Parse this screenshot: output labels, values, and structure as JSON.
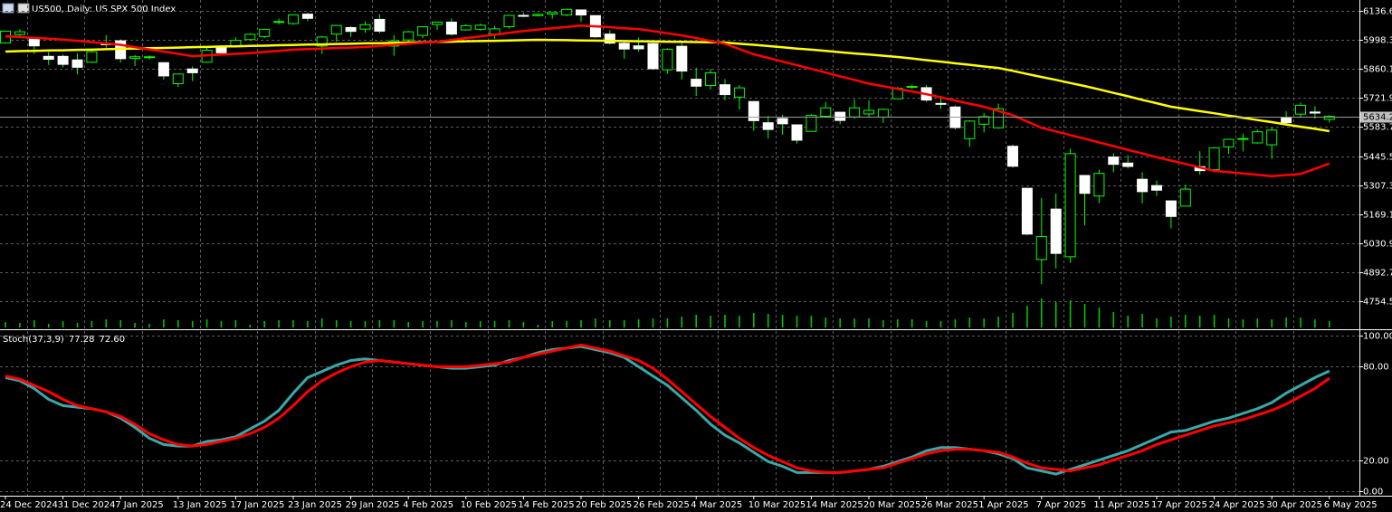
{
  "chart_data": [
    {
      "type": "candlestick",
      "title": "US500, Daily: US SPX 500 Index",
      "categories": [
        "24 Dec 2024",
        null,
        null,
        null,
        "31 Dec 2024",
        null,
        null,
        null,
        "7 Jan 2025",
        null,
        null,
        null,
        "13 Jan 2025",
        null,
        null,
        null,
        "17 Jan 2025",
        null,
        null,
        null,
        "23 Jan 2025",
        null,
        null,
        null,
        "29 Jan 2025",
        null,
        null,
        null,
        "4 Feb 2025",
        null,
        null,
        null,
        "10 Feb 2025",
        null,
        null,
        null,
        "14 Feb 2025",
        null,
        null,
        null,
        "20 Feb 2025",
        null,
        null,
        null,
        "26 Feb 2025",
        null,
        null,
        null,
        "4 Mar 2025",
        null,
        null,
        null,
        "10 Mar 2025",
        null,
        null,
        null,
        "14 Mar 2025",
        null,
        null,
        null,
        "20 Mar 2025",
        null,
        null,
        null,
        "26 Mar 2025",
        null,
        null,
        null,
        "1 Apr 2025",
        null,
        null,
        null,
        "7 Apr 2025",
        null,
        null,
        null,
        "11 Apr 2025",
        null,
        null,
        null,
        "17 Apr 2025",
        null,
        null,
        null,
        "24 Apr 2025",
        null,
        null,
        null,
        "30 Apr 2025",
        null,
        null,
        null,
        "6 May 2025"
      ],
      "open": [
        5984,
        6024,
        6006,
        5920,
        5920,
        5903,
        5892,
        5982,
        5994,
        5910,
        5915,
        5890,
        5790,
        5860,
        5892,
        5963,
        5970,
        6000,
        6015,
        6082,
        6076,
        6121,
        5969,
        6026,
        6057,
        6050,
        6096,
        5969,
        5998,
        6020,
        6072,
        6083,
        6046,
        6049,
        6026,
        6061,
        6115,
        6114,
        6121,
        6117,
        6141,
        6114,
        6026,
        5982,
        5970,
        5981,
        5856,
        5968,
        5811,
        5781,
        5785,
        5726,
        5705,
        5604,
        5624,
        5594,
        5563,
        5635,
        5654,
        5632,
        5646,
        5631,
        5718,
        5775,
        5771,
        5696,
        5679,
        5528,
        5597,
        5580,
        5492,
        5292,
        4953,
        5193,
        4966,
        5353,
        5255,
        5441,
        5412,
        5335,
        5305,
        5232,
        5207,
        5395,
        5381,
        5489,
        5529,
        5508,
        5499,
        5626,
        5645,
        5655,
        5620
      ],
      "high": [
        6040,
        6049,
        6007,
        5941,
        5929,
        5935,
        5949,
        6021,
        6001,
        5927,
        5925,
        5891,
        5836,
        5872,
        5961,
        5965,
        6011,
        6030,
        6052,
        6100,
        6119,
        6128,
        6018,
        6070,
        6063,
        6087,
        6120,
        6022,
        6042,
        6062,
        6084,
        6101,
        6074,
        6076,
        6065,
        6116,
        6127,
        6125,
        6129,
        6147,
        6141,
        6115,
        6044,
        5992,
        6010,
        5994,
        5959,
        5987,
        5866,
        5860,
        5812,
        5783,
        5705,
        5636,
        5642,
        5597,
        5645,
        5703,
        5654,
        5716,
        5711,
        5672,
        5775,
        5786,
        5783,
        5732,
        5686,
        5616,
        5650,
        5695,
        5500,
        5293,
        5246,
        5267,
        5481,
        5353,
        5381,
        5459,
        5450,
        5368,
        5329,
        5232,
        5309,
        5469,
        5489,
        5528,
        5553,
        5572,
        5581,
        5659,
        5700,
        5683,
        5640
      ],
      "low": [
        5981,
        6007,
        5932,
        5879,
        5868,
        5834,
        5888,
        5961,
        5890,
        5874,
        5905,
        5809,
        5774,
        5802,
        5889,
        5935,
        5970,
        5995,
        6007,
        6072,
        6071,
        6088,
        5932,
        5990,
        6013,
        6032,
        6030,
        5923,
        5990,
        6007,
        6047,
        6019,
        6042,
        6042,
        6004,
        6052,
        6107,
        6110,
        6099,
        6111,
        6084,
        6008,
        5977,
        5908,
        5942,
        5858,
        5837,
        5810,
        5732,
        5762,
        5711,
        5667,
        5565,
        5529,
        5547,
        5505,
        5563,
        5628,
        5597,
        5622,
        5633,
        5603,
        5718,
        5764,
        5703,
        5670,
        5572,
        5489,
        5558,
        5576,
        5390,
        5069,
        4835,
        4910,
        4937,
        5115,
        5221,
        5368,
        5386,
        5220,
        5255,
        5101,
        5207,
        5356,
        5371,
        5455,
        5468,
        5505,
        5433,
        5597,
        5629,
        5623,
        5605
      ],
      "close": [
        6040,
        6037,
        5970,
        5906,
        5882,
        5868,
        5942,
        5975,
        5909,
        5918,
        5918,
        5827,
        5836,
        5842,
        5949,
        5937,
        5996,
        6025,
        6049,
        6086,
        6118,
        6101,
        6012,
        6067,
        6039,
        6071,
        6040,
        5994,
        6037,
        6061,
        6083,
        6026,
        6066,
        6068,
        6051,
        6115,
        6114,
        6120,
        6129,
        6144,
        6117,
        6013,
        5983,
        5955,
        5956,
        5861,
        5954,
        5850,
        5778,
        5842,
        5738,
        5770,
        5614,
        5572,
        5599,
        5521,
        5639,
        5675,
        5615,
        5675,
        5663,
        5668,
        5768,
        5777,
        5712,
        5693,
        5581,
        5612,
        5633,
        5671,
        5397,
        5074,
        5062,
        4982,
        5457,
        5268,
        5363,
        5406,
        5396,
        5276,
        5283,
        5158,
        5288,
        5376,
        5485,
        5525,
        5529,
        5561,
        5569,
        5604,
        5687,
        5650,
        5634.2
      ],
      "up_color": "#000000",
      "down_color": "#ffffff",
      "wick_color": "#00ff00",
      "ylim": [
        4625.2,
        6188.3
      ],
      "yticks": [
        6136.6,
        5998.3,
        5860.1,
        5721.9,
        5583.7,
        5445.5,
        5307.3,
        5169.1,
        5030.9,
        4892.7,
        4754.5
      ],
      "grid": true,
      "current_price": 5634.2,
      "lines": [
        {
          "color": "#ffff00",
          "values": [
            5943,
            5945,
            5946,
            5948,
            5949,
            5951,
            5952,
            5954,
            5956,
            5957,
            5959,
            5960,
            5962,
            5964,
            5965,
            5967,
            5968,
            5970,
            5971,
            5973,
            5974,
            5976,
            5977,
            5979,
            5980,
            5982,
            5983,
            5984,
            5986,
            5987,
            5989,
            5990,
            5992,
            5993,
            5994,
            5996,
            5997,
            5999,
            5998,
            5997,
            5996,
            5995,
            5994,
            5993,
            5992,
            5991,
            5990,
            5989,
            5988,
            5987,
            5986,
            5980,
            5975,
            5969,
            5963,
            5957,
            5952,
            5946,
            5940,
            5934,
            5929,
            5923,
            5917,
            5910,
            5902,
            5895,
            5887,
            5880,
            5872,
            5865,
            5851,
            5836,
            5822,
            5808,
            5793,
            5779,
            5763,
            5746,
            5730,
            5713,
            5697,
            5680,
            5670,
            5659,
            5649,
            5638,
            5628,
            5617,
            5607,
            5596,
            5585,
            5575,
            5564
          ]
        },
        {
          "color": "#ff0000",
          "values": [
            6016,
            6012,
            6008,
            6004,
            6000,
            5994,
            5988,
            5981,
            5975,
            5964,
            5953,
            5943,
            5932,
            5921,
            5925,
            5928,
            5932,
            5935,
            5941,
            5946,
            5952,
            5955,
            5957,
            5960,
            5962,
            5965,
            5970,
            5975,
            5980,
            5985,
            5990,
            5998,
            6007,
            6015,
            6023,
            6032,
            6040,
            6047,
            6054,
            6060,
            6067,
            6063,
            6059,
            6054,
            6050,
            6040,
            6030,
            6020,
            6007,
            5993,
            5980,
            5955,
            5930,
            5913,
            5895,
            5878,
            5860,
            5843,
            5825,
            5808,
            5790,
            5778,
            5765,
            5753,
            5740,
            5725,
            5710,
            5695,
            5680,
            5660,
            5640,
            5610,
            5580,
            5563,
            5545,
            5528,
            5510,
            5493,
            5475,
            5458,
            5440,
            5424,
            5408,
            5391,
            5375,
            5369,
            5363,
            5356,
            5350,
            5355,
            5360,
            5385,
            5410
          ]
        }
      ],
      "volume": {
        "color": "#00d000",
        "values": [
          6,
          5,
          8,
          4,
          7,
          5,
          7,
          9,
          8,
          5,
          4,
          9,
          8,
          7,
          9,
          7,
          8,
          3,
          7,
          8,
          8,
          7,
          10,
          8,
          7,
          7,
          8,
          8,
          6,
          7,
          7,
          8,
          6,
          7,
          7,
          8,
          6,
          3,
          7,
          7,
          8,
          10,
          8,
          8,
          9,
          10,
          10,
          12,
          14,
          13,
          14,
          13,
          16,
          15,
          14,
          13,
          13,
          11,
          10,
          10,
          10,
          8,
          9,
          9,
          7,
          7,
          9,
          11,
          10,
          12,
          16,
          24,
          32,
          28,
          30,
          26,
          22,
          17,
          13,
          15,
          10,
          12,
          14,
          13,
          14,
          10,
          9,
          10,
          9,
          11,
          11,
          9,
          7
        ]
      }
    },
    {
      "type": "line",
      "title": "Stoch(37,3,9)",
      "series": [
        {
          "color": "#3aa8a8",
          "last_label": "77.28",
          "values": [
            73,
            71,
            66,
            59,
            55,
            54,
            53,
            51,
            47,
            41,
            34,
            30,
            29,
            29,
            32,
            33,
            35,
            40,
            45,
            52,
            63,
            73,
            77,
            81,
            84,
            85,
            84,
            83,
            82,
            81,
            80,
            79,
            79,
            80,
            81,
            84,
            86,
            89,
            91,
            92,
            93,
            91,
            89,
            86,
            80,
            74,
            68,
            60,
            52,
            43,
            36,
            31,
            25,
            19,
            16,
            12,
            12,
            12,
            12,
            13,
            14,
            16,
            19,
            22,
            26,
            28,
            28,
            27,
            26,
            24,
            21,
            15,
            13,
            11,
            14,
            17,
            20,
            23,
            26,
            30,
            34,
            38,
            39,
            42,
            45,
            47,
            50,
            53,
            57,
            63,
            68,
            73,
            77.28
          ]
        },
        {
          "color": "#ff0000",
          "last_label": "72.60",
          "values": [
            74,
            72,
            68,
            64,
            59,
            55,
            53,
            51,
            48,
            43,
            37,
            33,
            30,
            29,
            30,
            32,
            34,
            37,
            41,
            47,
            55,
            64,
            71,
            76,
            80,
            83,
            84,
            83,
            82,
            81,
            80,
            80,
            80,
            81,
            82,
            83,
            86,
            88,
            90,
            92,
            94,
            92,
            90,
            87,
            84,
            79,
            72,
            64,
            56,
            48,
            41,
            34,
            28,
            23,
            19,
            15,
            13,
            12,
            12,
            13,
            14,
            15,
            18,
            21,
            24,
            26,
            27,
            27,
            26,
            25,
            22,
            18,
            15,
            14,
            13,
            15,
            17,
            20,
            23,
            26,
            30,
            33,
            36,
            39,
            42,
            44,
            46,
            49,
            52,
            56,
            61,
            66,
            72.6
          ]
        }
      ],
      "ylim": [
        -2.9,
        102.9
      ],
      "yticks": [
        {
          "value": 100,
          "label": "100.00"
        },
        {
          "value": 80,
          "label": "80.00"
        },
        {
          "value": 20,
          "label": "20.00"
        },
        {
          "value": 0,
          "label": "0.00"
        }
      ],
      "grid": true
    }
  ]
}
